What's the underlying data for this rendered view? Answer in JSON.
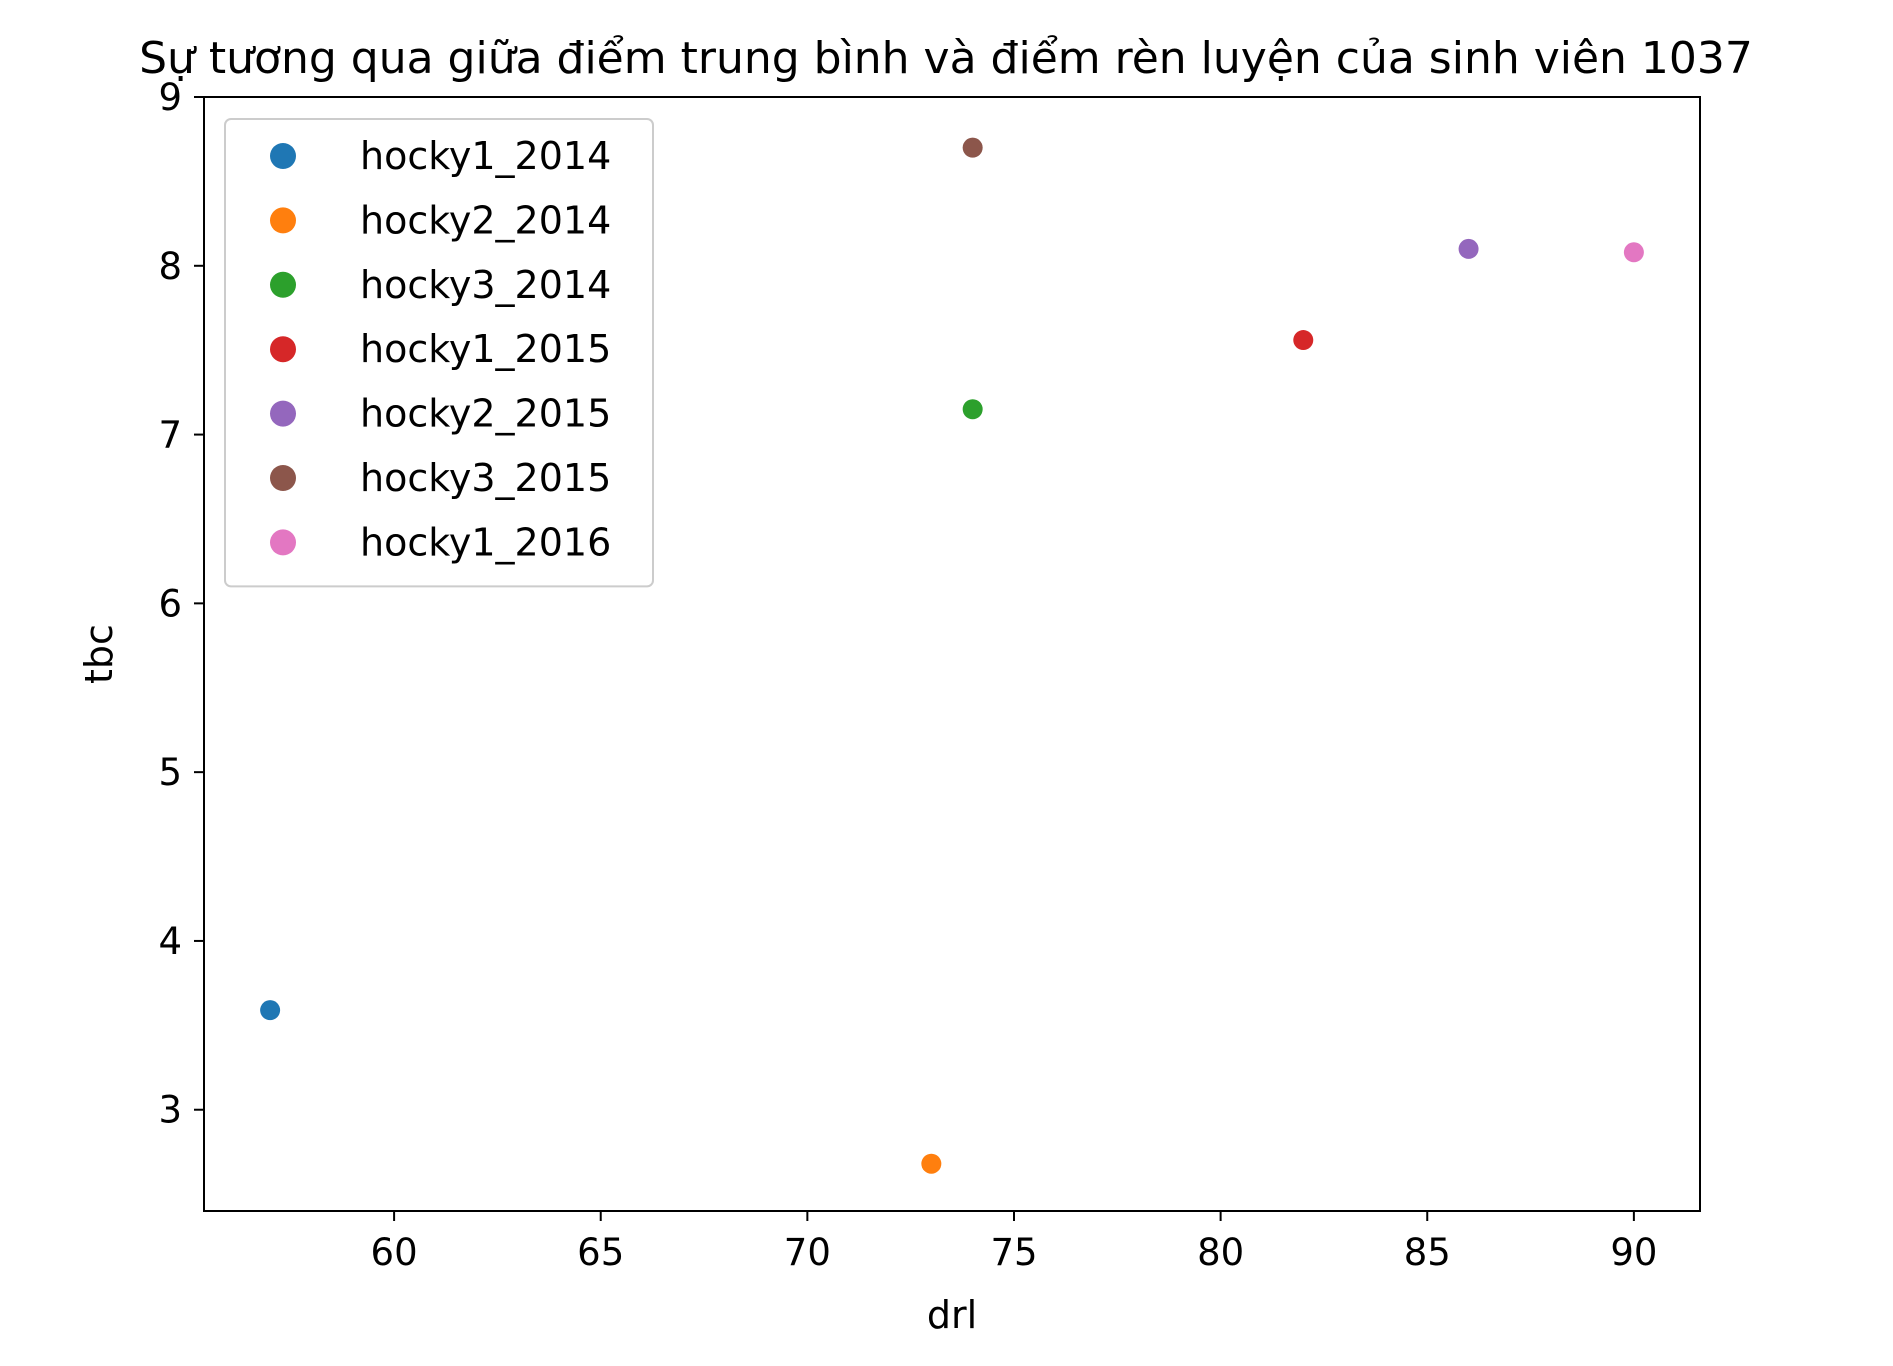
{
  "chart_data": {
    "type": "scatter",
    "title": "Sự tương qua giữa điểm trung bình và điểm rèn luyện của sinh viên 1037",
    "xlabel": "drl",
    "ylabel": "tbc",
    "xlim": [
      55.4,
      91.6
    ],
    "ylim": [
      2.4,
      9.0
    ],
    "x_ticks": [
      60,
      65,
      70,
      75,
      80,
      85,
      90
    ],
    "y_ticks": [
      3,
      4,
      5,
      6,
      7,
      8,
      9
    ],
    "grid": false,
    "legend_position": "upper-left",
    "series": [
      {
        "name": "hocky1_2014",
        "color": "#1f77b4",
        "points": [
          {
            "x": 57,
            "y": 3.59
          }
        ]
      },
      {
        "name": "hocky2_2014",
        "color": "#ff7f0e",
        "points": [
          {
            "x": 73,
            "y": 2.68
          }
        ]
      },
      {
        "name": "hocky3_2014",
        "color": "#2ca02c",
        "points": [
          {
            "x": 74,
            "y": 7.15
          }
        ]
      },
      {
        "name": "hocky1_2015",
        "color": "#d62728",
        "points": [
          {
            "x": 82,
            "y": 7.56
          }
        ]
      },
      {
        "name": "hocky2_2015",
        "color": "#9467bd",
        "points": [
          {
            "x": 86,
            "y": 8.1
          }
        ]
      },
      {
        "name": "hocky3_2015",
        "color": "#8c564b",
        "points": [
          {
            "x": 74,
            "y": 8.7
          }
        ]
      },
      {
        "name": "hocky1_2016",
        "color": "#e377c2",
        "points": [
          {
            "x": 90,
            "y": 8.08
          }
        ]
      }
    ]
  }
}
